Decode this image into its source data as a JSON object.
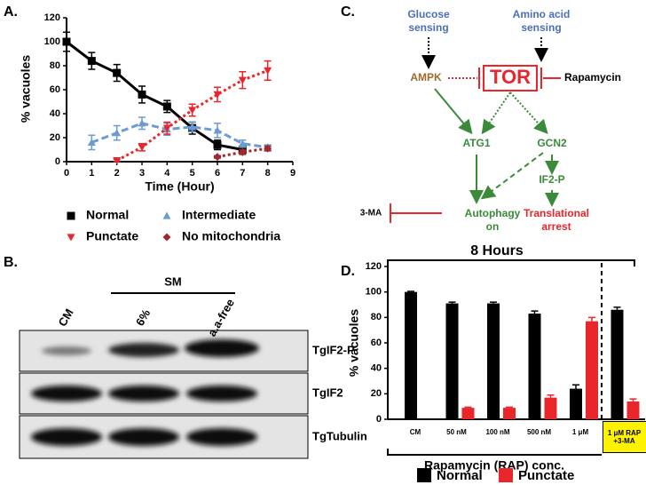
{
  "panel_labels": [
    "A.",
    "B.",
    "C.",
    "D."
  ],
  "chart_data": [
    {
      "type": "line",
      "y_label": "% vacuoles",
      "x_label": "Time (Hour)",
      "xlim": [
        0,
        9
      ],
      "xticks": [
        0,
        1,
        2,
        3,
        4,
        5,
        6,
        7,
        8,
        9
      ],
      "ylim": [
        0,
        120
      ],
      "yticks": [
        0,
        20,
        40,
        60,
        80,
        100,
        120
      ],
      "series": [
        {
          "name": "Normal",
          "color": "#000000",
          "marker": "square",
          "dash": "solid",
          "x": [
            0,
            1,
            2,
            3,
            4,
            5,
            6,
            7
          ],
          "values": [
            100,
            84,
            74,
            56,
            46,
            28,
            14,
            10
          ],
          "errors": [
            8,
            7,
            7,
            7,
            5,
            5,
            4,
            3
          ]
        },
        {
          "name": "Intermediate",
          "color": "#6b9bd1",
          "marker": "triangle-up",
          "dash": "dashed",
          "x": [
            1,
            2,
            3,
            4,
            5,
            6,
            7,
            8
          ],
          "values": [
            16,
            24,
            32,
            27,
            29,
            26,
            15,
            12
          ],
          "errors": [
            6,
            6,
            5,
            5,
            4,
            6,
            3,
            2
          ]
        },
        {
          "name": "Punctate",
          "color": "#e8262b",
          "marker": "triangle-down",
          "dash": "dotted",
          "x": [
            2,
            3,
            4,
            5,
            6,
            7,
            8
          ],
          "values": [
            1,
            12,
            28,
            43,
            56,
            68,
            76
          ],
          "errors": [
            1,
            3,
            5,
            5,
            6,
            7,
            8
          ]
        },
        {
          "name": "No mitochondria",
          "color": "#a0282a",
          "marker": "diamond",
          "dash": "dotted",
          "x": [
            6,
            7,
            8
          ],
          "values": [
            4,
            8,
            11
          ],
          "errors": [
            1,
            2,
            2
          ]
        }
      ]
    },
    {
      "type": "bar",
      "title": "8 Hours",
      "y_label": "% vacuoles",
      "x_label": "Rapamycin (RAP) conc.",
      "categories": [
        "CM",
        "50 nM",
        "100 nM",
        "500 nM",
        "1 μM",
        "1 μM RAP +3-MA"
      ],
      "ylim": [
        0,
        120
      ],
      "yticks": [
        0,
        20,
        40,
        60,
        80,
        100,
        120
      ],
      "series": [
        {
          "name": "Normal",
          "color": "#000000",
          "values": [
            100,
            91,
            91,
            83,
            24,
            86
          ],
          "errors": [
            0.5,
            1,
            1,
            2,
            3,
            2
          ]
        },
        {
          "name": "Punctate",
          "color": "#e8262b",
          "values": [
            null,
            9,
            9,
            17,
            77,
            14
          ],
          "errors": [
            null,
            0.5,
            0.5,
            2,
            3,
            2
          ]
        }
      ]
    }
  ],
  "blot": {
    "group_label": "SM",
    "lanes": [
      "CM",
      "6%",
      "a.a-free"
    ],
    "rows": [
      "TgIF2-P",
      "TgIF2",
      "TgTubulin"
    ]
  },
  "diagram": {
    "nodes": [
      {
        "lines": [
          "Glucose",
          "sensing"
        ],
        "color": "#4a6fb5"
      },
      {
        "lines": [
          "Amino acid",
          "sensing"
        ],
        "color": "#4a6fb5"
      },
      {
        "lines": [
          "AMPK"
        ],
        "color": "#9c6b30"
      },
      {
        "lines": [
          "TOR"
        ],
        "color": "#e8262b"
      },
      {
        "lines": [
          "Rapamycin"
        ],
        "color": "#000000"
      },
      {
        "lines": [
          "ATG1"
        ],
        "color": "#3a8a3a"
      },
      {
        "lines": [
          "GCN2"
        ],
        "color": "#3a8a3a"
      },
      {
        "lines": [
          "IF2-P"
        ],
        "color": "#3a8a3a"
      },
      {
        "lines": [
          "3-MA"
        ],
        "color": "#000000"
      },
      {
        "lines": [
          "Autophagy",
          "on"
        ],
        "color": "#3a8a3a"
      },
      {
        "lines": [
          "Translational",
          "arrest"
        ],
        "color": "#e8262b"
      }
    ]
  }
}
